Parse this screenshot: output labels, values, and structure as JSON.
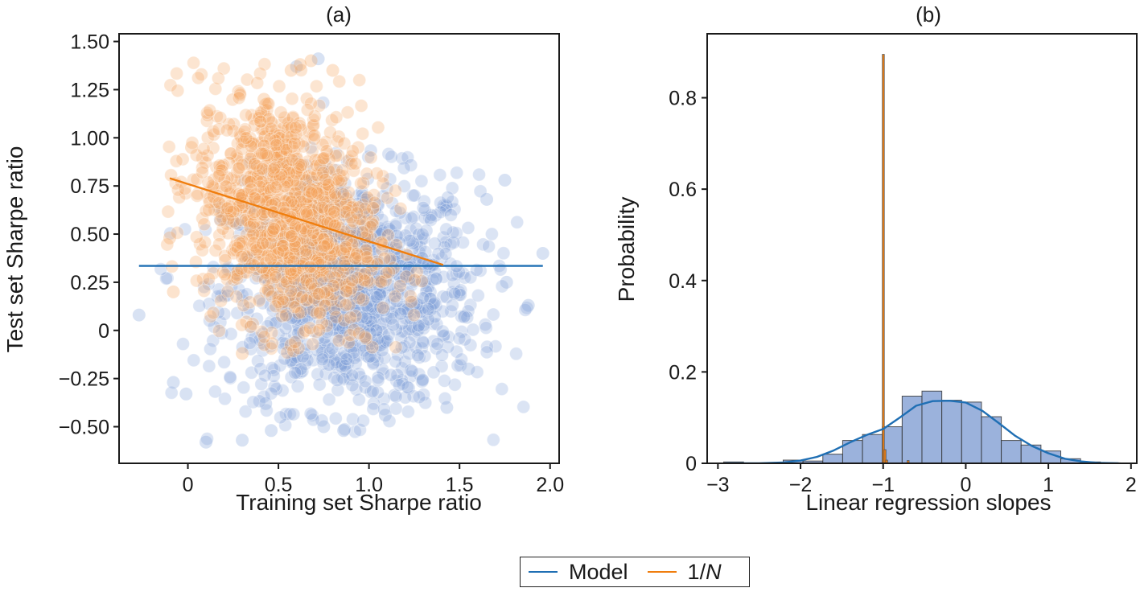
{
  "colors": {
    "model": "#1f6fb4",
    "one_over_n": "#f07e0e",
    "model_points": "#7f9fd8",
    "one_over_n_points": "#f6a35a",
    "hist_fill": "#9bb2dc",
    "hist_edge": "#2b2b2b",
    "axis": "#1a1a1a"
  },
  "legend": {
    "items": [
      {
        "label": "Model",
        "color": "#1f6fb4"
      },
      {
        "label": "1/",
        "label_italic": "N",
        "color": "#f07e0e"
      }
    ]
  },
  "chart_data": [
    {
      "type": "scatter",
      "title": "(a)",
      "xlabel": "Training set Sharpe ratio",
      "ylabel": "Test set Sharpe ratio",
      "xlim": [
        -0.38,
        2.05
      ],
      "ylim": [
        -0.69,
        1.54
      ],
      "xticks": [
        0,
        0.5,
        1.0,
        1.5,
        2.0
      ],
      "xtick_labels": [
        "0",
        "0.5",
        "1.0",
        "1.5",
        "2.0"
      ],
      "yticks": [
        -0.5,
        -0.25,
        0,
        0.25,
        0.5,
        0.75,
        1.0,
        1.25,
        1.5
      ],
      "ytick_labels": [
        "−0.50",
        "−0.25",
        "0",
        "0.25",
        "0.50",
        "0.75",
        "1.00",
        "1.25",
        "1.50"
      ],
      "grid": false,
      "series": [
        {
          "name": "Model",
          "kind": "scatter-cloud",
          "description": "semi-transparent blue points, dense around x≈0.9, y≈0.2",
          "center": [
            0.9,
            0.2
          ],
          "spread": [
            0.35,
            0.3
          ],
          "x_range": [
            -0.27,
            1.96
          ],
          "y_range": [
            -0.58,
            1.41
          ],
          "n_points": 1200,
          "outliers": [
            [
              -0.27,
              0.08
            ],
            [
              -0.08,
              -0.27
            ],
            [
              -0.01,
              -0.33
            ],
            [
              0.1,
              -0.58
            ],
            [
              0.3,
              -0.57
            ],
            [
              0.43,
              -0.38
            ],
            [
              0.86,
              -0.52
            ],
            [
              0.75,
              -0.5
            ],
            [
              1.88,
              0.13
            ],
            [
              1.96,
              0.4
            ],
            [
              1.76,
              0.25
            ],
            [
              1.75,
              0.78
            ],
            [
              1.65,
              0.68
            ],
            [
              0.72,
              1.41
            ],
            [
              0.6,
              1.37
            ],
            [
              1.09,
              -0.44
            ],
            [
              1.43,
              -0.4
            ],
            [
              1.55,
              -0.2
            ],
            [
              0.46,
              -0.52
            ]
          ]
        },
        {
          "name": "1/N",
          "kind": "scatter-cloud",
          "description": "semi-transparent orange points, dense around x≈0.55, y≈0.6",
          "center": [
            0.55,
            0.6
          ],
          "spread": [
            0.25,
            0.3
          ],
          "x_range": [
            -0.12,
            1.36
          ],
          "y_range": [
            -0.12,
            1.4
          ],
          "n_points": 1200,
          "outliers": [
            [
              0.68,
              1.4
            ],
            [
              0.62,
              1.38
            ],
            [
              0.57,
              1.35
            ],
            [
              0.8,
              1.35
            ],
            [
              -0.1,
              0.48
            ],
            [
              -0.08,
              0.2
            ],
            [
              0.02,
              0.95
            ],
            [
              0.3,
              -0.12
            ],
            [
              0.42,
              1.2
            ]
          ]
        },
        {
          "name": "Model fit",
          "kind": "line",
          "color": "#1f6fb4",
          "x": [
            -0.27,
            1.96
          ],
          "y": [
            0.335,
            0.335
          ]
        },
        {
          "name": "1/N fit",
          "kind": "line",
          "color": "#f07e0e",
          "x": [
            -0.1,
            1.41
          ],
          "y": [
            0.79,
            0.34
          ]
        }
      ]
    },
    {
      "type": "bar",
      "subtype": "histogram-with-kde",
      "title": "(b)",
      "xlabel": "Linear regression slopes",
      "ylabel": "Probability",
      "xlim": [
        -3.13,
        2.07
      ],
      "ylim": [
        0,
        0.94
      ],
      "xticks": [
        -3,
        -2,
        -1,
        0,
        1,
        2
      ],
      "xtick_labels": [
        "−3",
        "−2",
        "−1",
        "0",
        "1",
        "2"
      ],
      "yticks": [
        0,
        0.2,
        0.4,
        0.6,
        0.8
      ],
      "ytick_labels": [
        "0",
        "0.2",
        "0.4",
        "0.6",
        "0.8"
      ],
      "grid": false,
      "series": [
        {
          "name": "Model",
          "kind": "histogram",
          "bin_edges": [
            -2.93,
            -2.69,
            -2.45,
            -2.21,
            -1.97,
            -1.73,
            -1.49,
            -1.25,
            -1.01,
            -0.77,
            -0.53,
            -0.29,
            -0.05,
            0.19,
            0.43,
            0.67,
            0.91,
            1.15,
            1.39,
            1.63,
            1.87
          ],
          "values": [
            0.003,
            0.0,
            0.0,
            0.007,
            0.005,
            0.02,
            0.05,
            0.063,
            0.08,
            0.147,
            0.158,
            0.138,
            0.134,
            0.102,
            0.05,
            0.04,
            0.027,
            0.01,
            0.003,
            0.001
          ]
        },
        {
          "name": "Model KDE",
          "kind": "line",
          "color": "#1f6fb4",
          "x": [
            -2.9,
            -2.5,
            -2.2,
            -2.0,
            -1.8,
            -1.6,
            -1.4,
            -1.2,
            -1.0,
            -0.8,
            -0.6,
            -0.4,
            -0.2,
            0.0,
            0.2,
            0.4,
            0.6,
            0.8,
            1.0,
            1.2,
            1.4,
            1.6,
            1.85
          ],
          "y": [
            0.0,
            0.0,
            0.002,
            0.006,
            0.014,
            0.028,
            0.046,
            0.062,
            0.075,
            0.1,
            0.126,
            0.136,
            0.137,
            0.133,
            0.115,
            0.088,
            0.06,
            0.038,
            0.022,
            0.01,
            0.004,
            0.001,
            0.0
          ]
        },
        {
          "name": "1/N",
          "kind": "histogram",
          "color": "#f07e0e",
          "bin_edges": [
            -1.01,
            -0.99,
            -0.97,
            -0.95,
            -0.71,
            -0.69
          ],
          "values": [
            0.895,
            0.03,
            0.007,
            0.0,
            0.006
          ]
        }
      ]
    }
  ]
}
